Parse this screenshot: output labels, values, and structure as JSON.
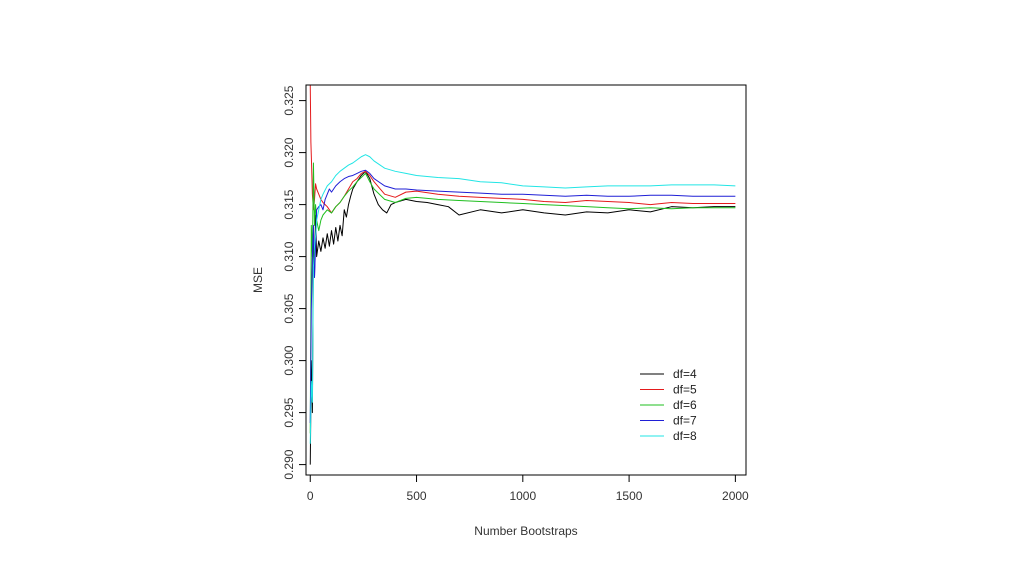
{
  "chart_data": {
    "type": "line",
    "title": "",
    "xlabel": "Number Bootstraps",
    "ylabel": "MSE",
    "xlim": [
      -20,
      2050
    ],
    "ylim": [
      0.289,
      0.3265
    ],
    "x_ticks": [
      0,
      500,
      1000,
      1500,
      2000
    ],
    "x_tick_labels": [
      "0",
      "500",
      "1000",
      "1500",
      "2000"
    ],
    "y_ticks": [
      0.29,
      0.295,
      0.3,
      0.305,
      0.31,
      0.315,
      0.32,
      0.325
    ],
    "y_tick_labels": [
      "0.290",
      "0.295",
      "0.300",
      "0.305",
      "0.310",
      "0.315",
      "0.320",
      "0.325"
    ],
    "grid": false,
    "legend_position": "bottom-right",
    "series": [
      {
        "name": "df=4",
        "color": "#000000",
        "x": [
          0,
          5,
          10,
          15,
          20,
          25,
          30,
          40,
          50,
          60,
          70,
          80,
          90,
          100,
          110,
          120,
          130,
          140,
          150,
          160,
          170,
          180,
          190,
          200,
          220,
          240,
          260,
          280,
          300,
          320,
          340,
          360,
          380,
          400,
          450,
          500,
          550,
          600,
          650,
          700,
          800,
          900,
          1000,
          1100,
          1200,
          1300,
          1400,
          1500,
          1600,
          1700,
          1800,
          1900,
          2000
        ],
        "y": [
          0.29,
          0.3,
          0.295,
          0.312,
          0.308,
          0.314,
          0.31,
          0.3115,
          0.3105,
          0.3118,
          0.3108,
          0.3122,
          0.311,
          0.3125,
          0.3112,
          0.3128,
          0.3115,
          0.313,
          0.312,
          0.3145,
          0.3138,
          0.315,
          0.3158,
          0.3165,
          0.3172,
          0.3178,
          0.3182,
          0.3175,
          0.316,
          0.315,
          0.3145,
          0.3142,
          0.315,
          0.3152,
          0.3155,
          0.3153,
          0.3152,
          0.315,
          0.3148,
          0.314,
          0.3145,
          0.3142,
          0.3145,
          0.3142,
          0.314,
          0.3143,
          0.3142,
          0.3145,
          0.3143,
          0.3148,
          0.3147,
          0.3148,
          0.3148
        ]
      },
      {
        "name": "df=5",
        "color": "#e41a1c",
        "x": [
          0,
          3,
          6,
          10,
          15,
          20,
          25,
          30,
          40,
          50,
          60,
          70,
          80,
          90,
          100,
          120,
          140,
          160,
          180,
          200,
          220,
          240,
          260,
          280,
          300,
          350,
          400,
          450,
          500,
          600,
          700,
          800,
          900,
          1000,
          1100,
          1200,
          1300,
          1400,
          1500,
          1600,
          1700,
          1800,
          1900,
          2000
        ],
        "y": [
          0.3265,
          0.321,
          0.319,
          0.316,
          0.3145,
          0.3155,
          0.317,
          0.3165,
          0.316,
          0.3155,
          0.3152,
          0.315,
          0.3148,
          0.3145,
          0.3142,
          0.3148,
          0.3152,
          0.3158,
          0.3165,
          0.3172,
          0.3175,
          0.318,
          0.3182,
          0.3178,
          0.3172,
          0.316,
          0.3157,
          0.3162,
          0.3163,
          0.316,
          0.3158,
          0.3157,
          0.3156,
          0.3155,
          0.3153,
          0.3152,
          0.3154,
          0.3153,
          0.3152,
          0.315,
          0.3152,
          0.3151,
          0.3151,
          0.3151
        ]
      },
      {
        "name": "df=6",
        "color": "#1fbf1f",
        "x": [
          0,
          5,
          10,
          15,
          20,
          25,
          30,
          40,
          50,
          60,
          80,
          100,
          120,
          140,
          160,
          180,
          200,
          220,
          240,
          260,
          280,
          300,
          350,
          400,
          450,
          500,
          600,
          700,
          800,
          900,
          1000,
          1100,
          1200,
          1300,
          1400,
          1500,
          1600,
          1700,
          1800,
          1900,
          2000
        ],
        "y": [
          0.293,
          0.313,
          0.31,
          0.319,
          0.313,
          0.315,
          0.3135,
          0.3125,
          0.3135,
          0.314,
          0.3145,
          0.3142,
          0.3148,
          0.3152,
          0.3158,
          0.3163,
          0.3167,
          0.3172,
          0.3176,
          0.318,
          0.3172,
          0.3165,
          0.3155,
          0.3152,
          0.3156,
          0.3157,
          0.3155,
          0.3154,
          0.3153,
          0.3152,
          0.3151,
          0.315,
          0.3149,
          0.3148,
          0.3147,
          0.3146,
          0.3147,
          0.3146,
          0.3147,
          0.3147,
          0.3147
        ]
      },
      {
        "name": "df=7",
        "color": "#1f1fd6",
        "x": [
          0,
          5,
          10,
          15,
          20,
          25,
          30,
          40,
          50,
          60,
          70,
          80,
          90,
          100,
          120,
          140,
          160,
          180,
          200,
          220,
          240,
          260,
          280,
          300,
          350,
          400,
          450,
          500,
          600,
          700,
          800,
          900,
          1000,
          1100,
          1200,
          1300,
          1400,
          1500,
          1600,
          1700,
          1800,
          1900,
          2000
        ],
        "y": [
          0.294,
          0.305,
          0.31,
          0.313,
          0.308,
          0.311,
          0.3145,
          0.3148,
          0.315,
          0.3145,
          0.3155,
          0.316,
          0.3165,
          0.3162,
          0.3168,
          0.3172,
          0.3175,
          0.3177,
          0.3178,
          0.318,
          0.3182,
          0.3183,
          0.318,
          0.3175,
          0.3168,
          0.3165,
          0.3165,
          0.3164,
          0.3163,
          0.3162,
          0.3161,
          0.316,
          0.316,
          0.3159,
          0.3158,
          0.3159,
          0.3158,
          0.3158,
          0.3159,
          0.3159,
          0.3158,
          0.3158,
          0.3158
        ]
      },
      {
        "name": "df=8",
        "color": "#22e5e5",
        "x": [
          0,
          5,
          10,
          15,
          20,
          25,
          30,
          40,
          50,
          60,
          80,
          100,
          120,
          140,
          160,
          180,
          200,
          220,
          240,
          260,
          280,
          300,
          350,
          400,
          450,
          500,
          600,
          700,
          800,
          900,
          1000,
          1100,
          1200,
          1300,
          1400,
          1500,
          1600,
          1700,
          1800,
          1900,
          2000
        ],
        "y": [
          0.292,
          0.298,
          0.296,
          0.309,
          0.311,
          0.312,
          0.3135,
          0.3145,
          0.3155,
          0.316,
          0.3168,
          0.3172,
          0.3178,
          0.3182,
          0.3185,
          0.3188,
          0.319,
          0.3193,
          0.3196,
          0.3198,
          0.3196,
          0.3192,
          0.3185,
          0.3182,
          0.318,
          0.3178,
          0.3176,
          0.3175,
          0.3172,
          0.3171,
          0.3168,
          0.3167,
          0.3166,
          0.3167,
          0.3168,
          0.3168,
          0.3168,
          0.3169,
          0.3169,
          0.3169,
          0.3168
        ]
      }
    ]
  }
}
